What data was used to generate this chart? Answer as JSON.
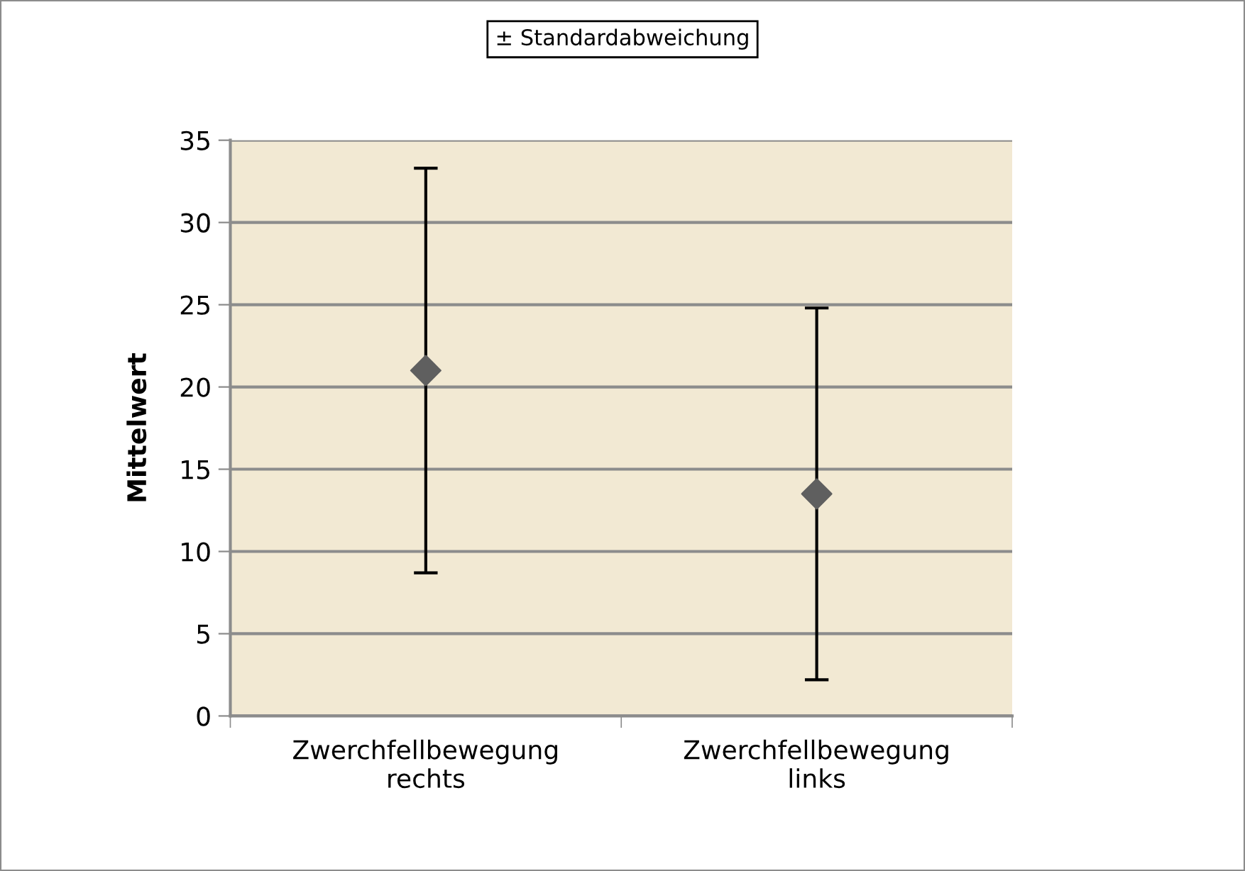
{
  "chart_data": {
    "type": "scatter",
    "ylabel": "Mittelwert",
    "categories": [
      "Zwerchfellbewegung\nrechts",
      "Zwerchfellbewegung\nlinks"
    ],
    "series": [
      {
        "color": "#5f5f5f",
        "values": [
          21,
          13.5
        ],
        "errors": [
          12.3,
          11.3
        ]
      }
    ],
    "annotations": [
      "± Standardabweichung"
    ],
    "ylim": [
      0,
      35
    ],
    "yticks": [
      0,
      5,
      10,
      15,
      20,
      25,
      30,
      35
    ],
    "grid": "y",
    "marker": "diamond"
  }
}
